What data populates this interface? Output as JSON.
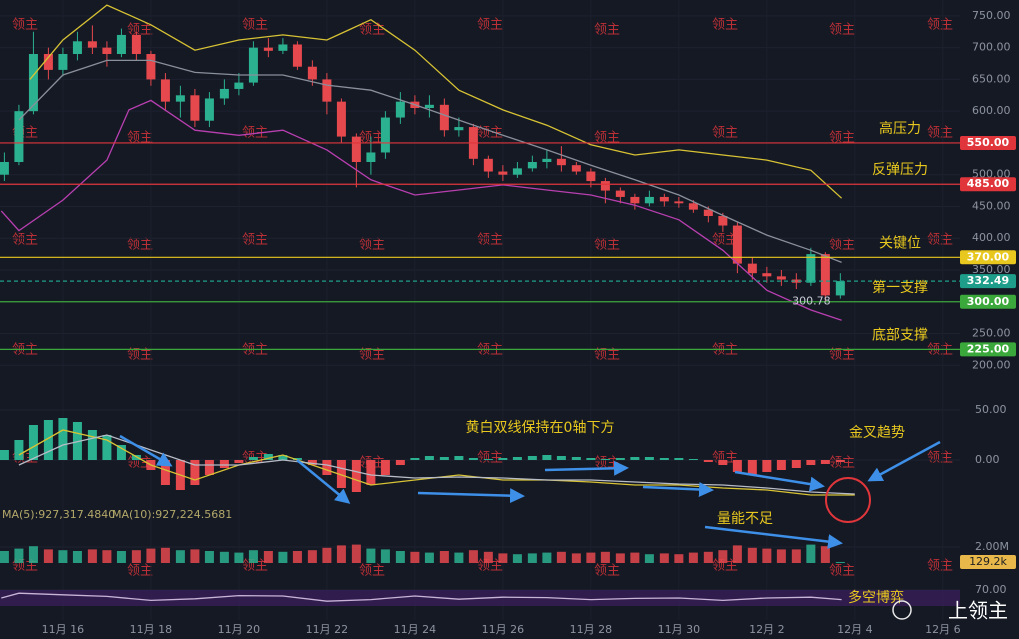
{
  "chart_data": {
    "type": "candlestick",
    "x": [
      14.67,
      15,
      15.33,
      15.67,
      16,
      16.33,
      16.67,
      17,
      17.33,
      17.67,
      18,
      18.33,
      18.67,
      19,
      19.33,
      19.67,
      20,
      20.33,
      20.67,
      21,
      21.33,
      21.67,
      22,
      22.33,
      22.67,
      23,
      23.33,
      23.67,
      24,
      24.33,
      24.67,
      25,
      25.33,
      25.67,
      26,
      26.33,
      26.67,
      27,
      27.33,
      27.67,
      28,
      28.33,
      28.67,
      29,
      29.33,
      29.67,
      30,
      30.33,
      30.67,
      31,
      31.33,
      31.67,
      32,
      32.33,
      32.67,
      33,
      33.33,
      33.67
    ],
    "open": [
      500,
      520,
      600,
      690,
      665,
      690,
      710,
      700,
      690,
      720,
      690,
      650,
      615,
      625,
      585,
      620,
      635,
      645,
      700,
      695,
      705,
      670,
      650,
      615,
      560,
      520,
      535,
      590,
      615,
      605,
      610,
      570,
      575,
      525,
      505,
      500,
      510,
      520,
      525,
      515,
      505,
      490,
      475,
      465,
      455,
      465,
      458,
      455,
      445,
      435,
      420,
      360,
      345,
      340,
      335,
      330,
      375,
      310
    ],
    "high": [
      535,
      610,
      725,
      700,
      700,
      725,
      735,
      710,
      730,
      725,
      695,
      660,
      640,
      635,
      630,
      650,
      660,
      710,
      715,
      715,
      710,
      680,
      660,
      620,
      565,
      560,
      600,
      630,
      625,
      625,
      620,
      590,
      580,
      530,
      515,
      520,
      530,
      540,
      545,
      520,
      510,
      495,
      480,
      470,
      475,
      470,
      465,
      460,
      450,
      440,
      425,
      370,
      355,
      350,
      345,
      385,
      378,
      345
    ],
    "low": [
      490,
      515,
      595,
      650,
      655,
      680,
      690,
      670,
      685,
      680,
      640,
      600,
      590,
      575,
      575,
      610,
      625,
      640,
      685,
      690,
      665,
      640,
      595,
      550,
      480,
      500,
      525,
      580,
      595,
      590,
      560,
      560,
      515,
      495,
      490,
      495,
      505,
      510,
      505,
      500,
      480,
      455,
      455,
      445,
      450,
      450,
      448,
      440,
      425,
      410,
      345,
      335,
      330,
      325,
      320,
      325,
      300.78,
      305
    ],
    "close": [
      520,
      600,
      690,
      665,
      690,
      710,
      700,
      690,
      720,
      690,
      650,
      615,
      625,
      585,
      620,
      635,
      645,
      700,
      695,
      705,
      670,
      650,
      615,
      560,
      520,
      535,
      590,
      615,
      605,
      610,
      570,
      575,
      525,
      505,
      500,
      510,
      520,
      525,
      515,
      505,
      490,
      475,
      465,
      455,
      465,
      458,
      455,
      445,
      435,
      420,
      360,
      345,
      340,
      335,
      330,
      375,
      310,
      332.49
    ],
    "up_color": "#2bb18f",
    "down_color": "#e5484d",
    "xlim": [
      14.57,
      36.39
    ],
    "xticks": [
      {
        "value": 16,
        "label": "11月 16"
      },
      {
        "value": 18,
        "label": "11月 18"
      },
      {
        "value": 20,
        "label": "11月 20"
      },
      {
        "value": 22,
        "label": "11月 22"
      },
      {
        "value": 24,
        "label": "11月 24"
      },
      {
        "value": 26,
        "label": "11月 26"
      },
      {
        "value": 28,
        "label": "11月 28"
      },
      {
        "value": 30,
        "label": "11月 30"
      },
      {
        "value": 32,
        "label": "12月 2"
      },
      {
        "value": 34,
        "label": "12月 4"
      },
      {
        "value": 36,
        "label": "12月 6"
      }
    ],
    "ylim": [
      180,
      775
    ],
    "yticks": [
      {
        "value": 200,
        "label": "200.00"
      },
      {
        "value": 250,
        "label": "250.00"
      },
      {
        "value": 300,
        "label": "300.00"
      },
      {
        "value": 350,
        "label": "350.00"
      },
      {
        "value": 400,
        "label": "400.00"
      },
      {
        "value": 450,
        "label": "450.00"
      },
      {
        "value": 500,
        "label": "500.00"
      },
      {
        "value": 550,
        "label": "550.00"
      },
      {
        "value": 600,
        "label": "600.00"
      },
      {
        "value": 650,
        "label": "650.00"
      },
      {
        "value": 700,
        "label": "700.00"
      },
      {
        "value": 750,
        "label": "750.00"
      }
    ],
    "lines": [
      {
        "color": "#d8c334",
        "x": [
          15.25,
          16,
          17,
          18,
          19,
          20,
          21,
          22,
          22.5,
          23,
          24,
          25,
          26,
          27,
          28,
          29,
          30,
          31,
          32,
          33,
          33.7
        ],
        "values": [
          650,
          712,
          767,
          736,
          696,
          712,
          720,
          712,
          728,
          744,
          696,
          633,
          602,
          578,
          547,
          531,
          539,
          531,
          523,
          507,
          463
        ]
      },
      {
        "color": "#8a8f9c",
        "x": [
          15,
          16,
          17,
          18,
          19,
          20,
          21,
          22,
          23,
          24,
          25,
          26,
          27,
          28,
          29,
          30,
          31,
          32,
          33,
          33.7
        ],
        "values": [
          586,
          657,
          680,
          680,
          661,
          657,
          657,
          641,
          633,
          610,
          586,
          562,
          539,
          515,
          492,
          468,
          436,
          405,
          381,
          362
        ]
      },
      {
        "color": "#b83fb0",
        "x": [
          14.6,
          15,
          16,
          17,
          17.5,
          18,
          19,
          20,
          21,
          22,
          23,
          24,
          25,
          26,
          27,
          28,
          29,
          30,
          31,
          32,
          33,
          33.7
        ],
        "values": [
          443,
          412,
          460,
          523,
          602,
          617,
          570,
          562,
          570,
          539,
          492,
          468,
          476,
          484,
          476,
          468,
          452,
          429,
          381,
          318,
          287,
          271
        ]
      }
    ],
    "levels": [
      {
        "value": 550,
        "label": "550.00",
        "name": "高压力",
        "color": "#e0363b"
      },
      {
        "value": 485,
        "label": "485.00",
        "name": "反弹压力",
        "color": "#e0363b"
      },
      {
        "value": 370,
        "label": "370.00",
        "name": "关键位",
        "color": "#e8c81e"
      },
      {
        "value": 332.49,
        "label": "332.49",
        "color": "#1e9e8a",
        "dashed": true
      },
      {
        "value": 300,
        "label": "300.00",
        "name": "第一支撑",
        "color": "#3aa83a"
      },
      {
        "value": 225,
        "label": "225.00",
        "name": "底部支撑",
        "color": "#3aa83a"
      }
    ],
    "low_marker": {
      "value": 300.78,
      "label": "300.78"
    },
    "macd": {
      "ylim": [
        -65,
        65
      ],
      "yticks": [
        {
          "value": 0,
          "label": "0.00"
        },
        {
          "value": 50,
          "label": "50.00"
        }
      ],
      "histogram": [
        10,
        20,
        35,
        40,
        42,
        38,
        30,
        25,
        15,
        5,
        -10,
        -25,
        -30,
        -25,
        -15,
        -8,
        -3,
        3,
        6,
        5,
        2,
        -5,
        -15,
        -28,
        -32,
        -25,
        -15,
        -5,
        2,
        4,
        3,
        4,
        2,
        1,
        2,
        3,
        4,
        5,
        4,
        3,
        2,
        1,
        2,
        3,
        3,
        2,
        2,
        1,
        -2,
        -5,
        -12,
        -15,
        -12,
        -10,
        -8,
        -5,
        -4,
        -2
      ],
      "lines": [
        {
          "color": "#d8c334",
          "x": [
            15,
            16,
            17,
            18,
            19,
            20,
            21,
            22,
            23,
            24,
            25,
            26,
            27,
            28,
            29,
            30,
            31,
            32,
            33,
            34
          ],
          "values": [
            5,
            30,
            20,
            -5,
            -20,
            -5,
            5,
            -10,
            -25,
            -20,
            -15,
            -20,
            -20,
            -22,
            -25,
            -25,
            -28,
            -30,
            -35,
            -35
          ]
        },
        {
          "color": "#b8bcc6",
          "x": [
            15,
            16,
            17,
            18,
            19,
            20,
            21,
            22,
            23,
            24,
            25,
            26,
            27,
            28,
            29,
            30,
            31,
            32,
            33,
            34
          ],
          "values": [
            -5,
            15,
            25,
            10,
            -5,
            -5,
            0,
            -5,
            -15,
            -18,
            -17,
            -18,
            -20,
            -20,
            -22,
            -24,
            -25,
            -28,
            -32,
            -34
          ]
        }
      ]
    },
    "volume": {
      "ylim": [
        0,
        3500000
      ],
      "yticks": [
        {
          "value": 2000000,
          "label": "2.00M"
        }
      ],
      "values": [
        1500000,
        1800000,
        2100000,
        1700000,
        1600000,
        1500000,
        1700000,
        1600000,
        1500000,
        1600000,
        1800000,
        1900000,
        1600000,
        1700000,
        1500000,
        1400000,
        1300000,
        1600000,
        1500000,
        1400000,
        1500000,
        1600000,
        1900000,
        2200000,
        2300000,
        1800000,
        1700000,
        1500000,
        1400000,
        1300000,
        1500000,
        1300000,
        1600000,
        1400000,
        1200000,
        1100000,
        1200000,
        1300000,
        1400000,
        1200000,
        1300000,
        1400000,
        1200000,
        1300000,
        1100000,
        1200000,
        1100000,
        1300000,
        1400000,
        1600000,
        2200000,
        1900000,
        1800000,
        1700000,
        1700000,
        2300000,
        2100000,
        129200
      ],
      "last_label": {
        "value": 129200,
        "label": "129.2k"
      },
      "ma_labels": [
        "MA(5):927,317.4840",
        "MA(10):927,224.5681"
      ]
    },
    "rsi": {
      "ylim": [
        0,
        100
      ],
      "yticks": [
        {
          "value": 70,
          "label": "70.00"
        }
      ],
      "x": [
        14.6,
        15,
        16,
        17,
        18,
        19,
        20,
        21,
        22,
        23,
        24,
        25,
        26,
        27,
        28,
        29,
        30,
        31,
        32,
        33,
        33.7
      ],
      "values": [
        50,
        62,
        58,
        54,
        44,
        48,
        56,
        55,
        42,
        46,
        55,
        47,
        52,
        51,
        46,
        49,
        50,
        44,
        50,
        52,
        46
      ]
    },
    "annotations": [
      "黄白双线保持在0轴下方",
      "金叉趋势",
      "量能不足",
      "多空博弈"
    ],
    "watermark": "领主",
    "brand": "上领主"
  }
}
